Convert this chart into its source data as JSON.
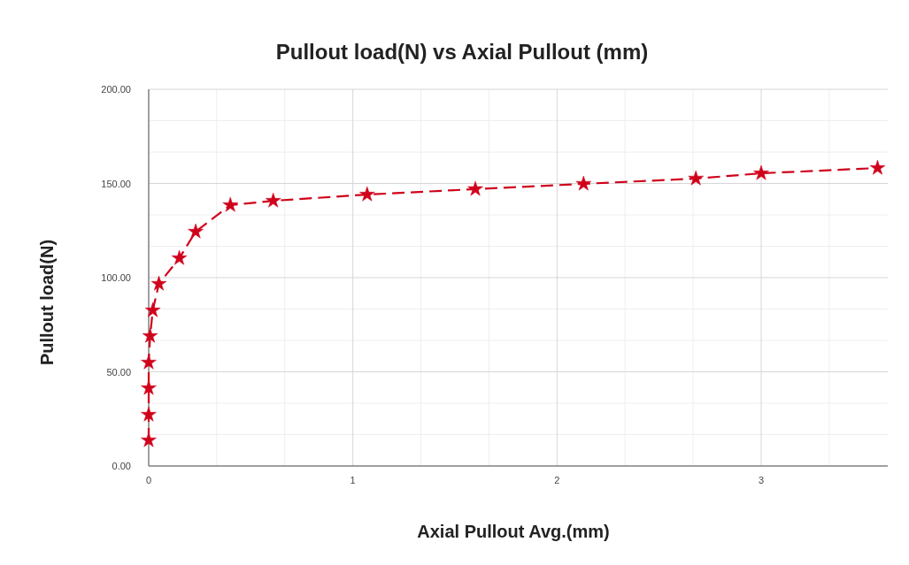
{
  "chart_data": {
    "type": "line",
    "title": "Pullout load(N) vs Axial Pullout (mm)",
    "xlabel": "Axial Pullout Avg.(mm)",
    "ylabel": "Pullout load(N)",
    "x": [
      0,
      0,
      0,
      0,
      0.007,
      0.02,
      0.05,
      0.15,
      0.23,
      0.4,
      0.61,
      1.07,
      1.6,
      2.13,
      2.68,
      3.0,
      3.57
    ],
    "series": [
      {
        "color": "#d0021b",
        "values": [
          13.6,
          27.2,
          41.3,
          54.9,
          69.0,
          82.6,
          96.7,
          110.3,
          124.4,
          138.5,
          140.8,
          144.1,
          147.0,
          149.8,
          152.6,
          155.4,
          158.2
        ]
      }
    ],
    "xlim": [
      0,
      3.62
    ],
    "xticks": [
      0,
      1,
      2,
      3
    ],
    "ylim": [
      0,
      200
    ],
    "yticks": [
      {
        "value": 0,
        "label": "0.00"
      },
      {
        "value": 50,
        "label": "50.00"
      },
      {
        "value": 100,
        "label": "100.00"
      },
      {
        "value": 150,
        "label": "150.00"
      },
      {
        "value": 200,
        "label": "200.00"
      }
    ],
    "grid": true,
    "marker": "star",
    "line_style": "dashed"
  }
}
